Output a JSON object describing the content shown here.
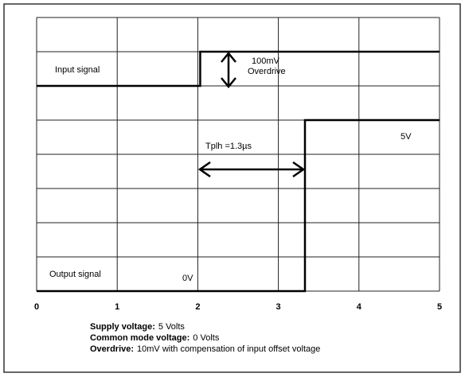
{
  "chart_data": {
    "type": "line",
    "xlim": [
      0,
      5
    ],
    "xticks": [
      0,
      1,
      2,
      3,
      4,
      5
    ],
    "ylim": [
      0,
      8
    ],
    "yticks": [
      0,
      1,
      2,
      3,
      4,
      5,
      6,
      7,
      8
    ],
    "grid": true,
    "series": [
      {
        "name": "Input signal",
        "color": "#000000",
        "x": [
          0,
          2.03,
          2.03,
          5
        ],
        "values": [
          6,
          6,
          7,
          7
        ]
      },
      {
        "name": "Output signal",
        "color": "#000000",
        "x": [
          0,
          3.33,
          3.33,
          5
        ],
        "values": [
          0,
          0,
          5,
          5
        ]
      }
    ],
    "annotations": [
      "100mV",
      "Overdrive",
      "Tplh =1.3µs",
      "5V",
      "0V"
    ],
    "notes": [
      {
        "label": "Supply voltage:",
        "text": "5 Volts"
      },
      {
        "label": "Common mode voltage:",
        "text": "0 Volts"
      },
      {
        "label": "Overdrive:",
        "text": "10mV with compensation of input offset voltage"
      }
    ]
  }
}
